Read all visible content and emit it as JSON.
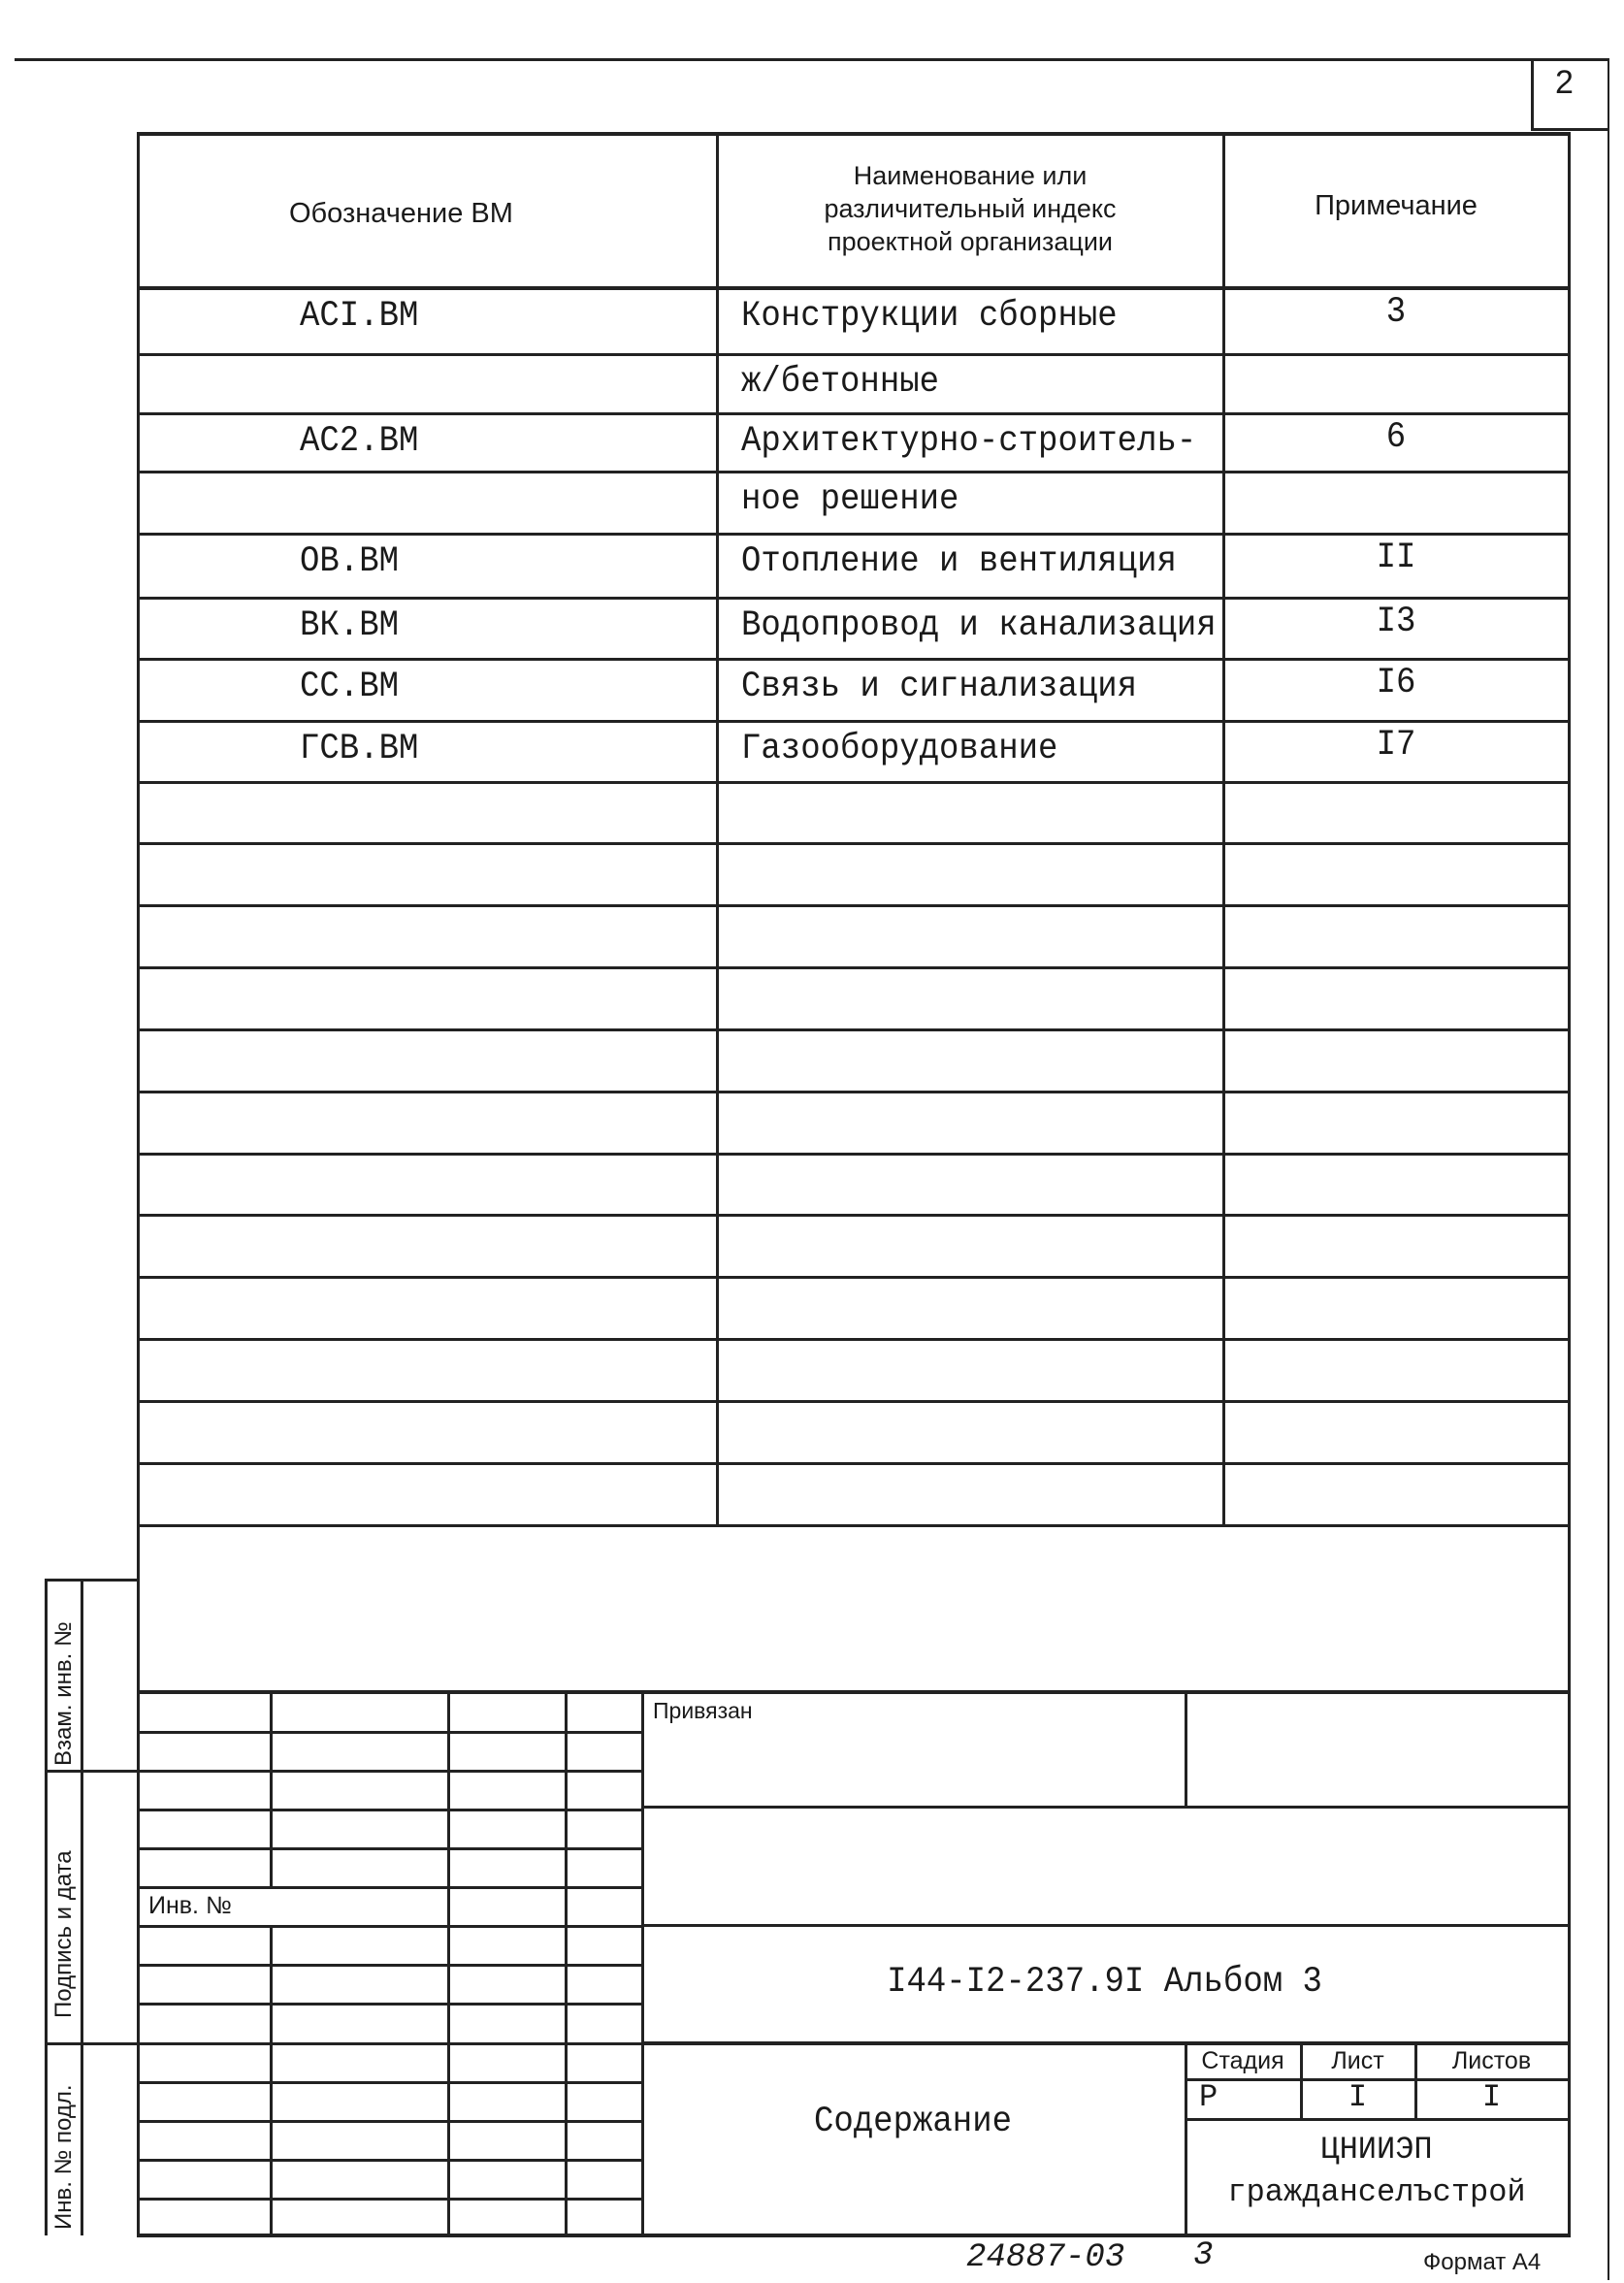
{
  "page_number": "2",
  "table": {
    "headers": {
      "designation": "Обозначение ВМ",
      "name_lines": [
        "Наименование или",
        "различительный индекс",
        "проектной организации"
      ],
      "note": "Примечание"
    },
    "rows": [
      {
        "designation": "АСI.ВМ",
        "name": "Конструкции сборные",
        "note": "3"
      },
      {
        "designation": "",
        "name": "ж/бетонные",
        "note": ""
      },
      {
        "designation": "АС2.ВМ",
        "name": "Архитектурно-строитель-",
        "note": "6"
      },
      {
        "designation": "",
        "name": "ное решение",
        "note": ""
      },
      {
        "designation": "ОВ.ВМ",
        "name": "Отопление и вентиляция",
        "note": "II"
      },
      {
        "designation": "ВК.ВМ",
        "name": "Водопровод и канализация",
        "note": "I3"
      },
      {
        "designation": "СС.ВМ",
        "name": "Связь и сигнализация",
        "note": "I6"
      },
      {
        "designation": "ГСВ.ВМ",
        "name": "Газооборудование",
        "note": "I7"
      },
      {
        "designation": "",
        "name": "",
        "note": ""
      },
      {
        "designation": "",
        "name": "",
        "note": ""
      },
      {
        "designation": "",
        "name": "",
        "note": ""
      },
      {
        "designation": "",
        "name": "",
        "note": ""
      },
      {
        "designation": "",
        "name": "",
        "note": ""
      },
      {
        "designation": "",
        "name": "",
        "note": ""
      },
      {
        "designation": "",
        "name": "",
        "note": ""
      },
      {
        "designation": "",
        "name": "",
        "note": ""
      },
      {
        "designation": "",
        "name": "",
        "note": ""
      },
      {
        "designation": "",
        "name": "",
        "note": ""
      },
      {
        "designation": "",
        "name": "",
        "note": ""
      },
      {
        "designation": "",
        "name": "",
        "note": ""
      }
    ]
  },
  "side_labels": {
    "replaced_inv": "Взам. инв. №",
    "signature_date": "Подпись и дата",
    "inv_original": "Инв. № подл."
  },
  "title_block": {
    "linked": "Привязан",
    "inv_no": "Инв. №",
    "document_code": "I44-I2-237.9I  Альбом 3",
    "sheet_title": "Содержание",
    "stage_label": "Стадия",
    "sheet_label": "Лист",
    "sheets_label": "Листов",
    "stage_value": "Р",
    "sheet_value": "I",
    "sheets_value": "I",
    "organization_lines": [
      "ЦНИИЭП",
      "гражданселъстрой"
    ]
  },
  "footer": {
    "archive_number": "24887-03",
    "copy_number": "3",
    "format": "Формат А4"
  }
}
